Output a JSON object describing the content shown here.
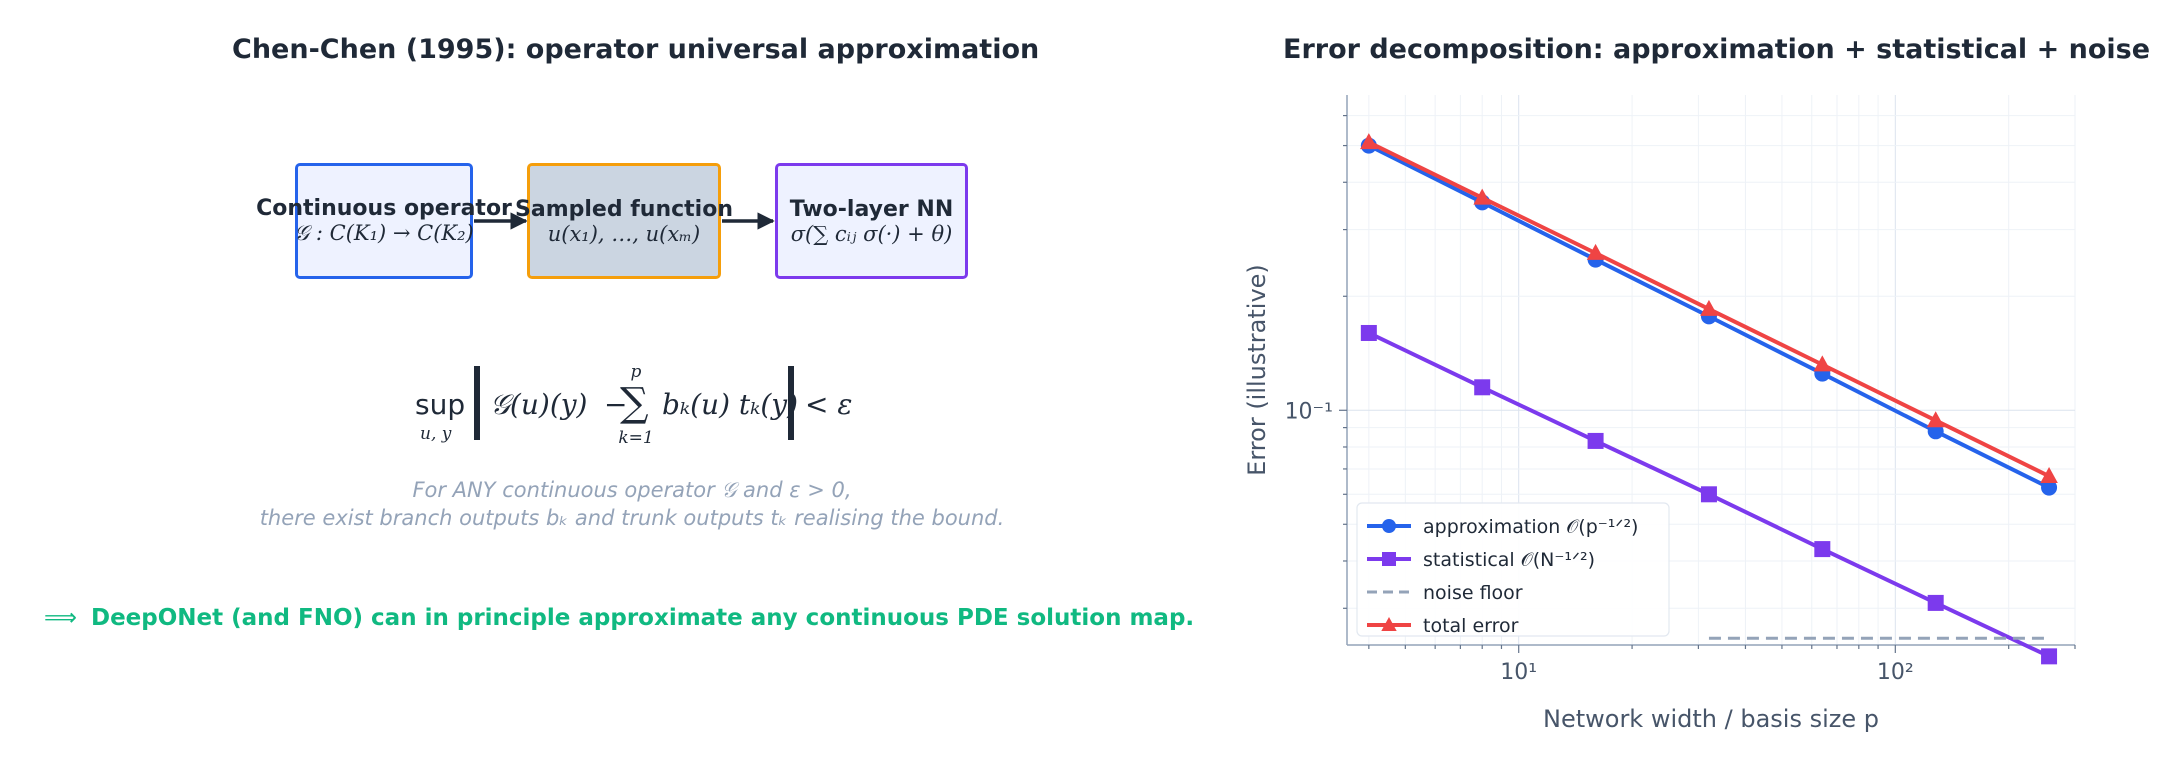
{
  "left": {
    "title": "Chen-Chen (1995): operator universal approximation",
    "boxes": [
      {
        "title": "Continuous operator",
        "math": "𝒢 : C(K₁) → C(K₂)"
      },
      {
        "title": "Sampled function",
        "math": "u(x₁), …, u(xₘ)"
      },
      {
        "title": "Two-layer NN",
        "math": "σ(∑ cᵢⱼ σ(·) + θ)"
      }
    ],
    "formula": {
      "sup": "sup",
      "sup_sub": "u, y",
      "lhs": "𝒢(u)(y)",
      "minus": "−",
      "sum_top": "p",
      "sum_bottom": "k=1",
      "rhs": "bₖ(u) tₖ(y)",
      "tail": "< ε"
    },
    "note_line1": "For ANY continuous operator 𝒢 and ε > 0,",
    "note_line2": "there exist branch outputs bₖ and trunk outputs tₖ realising the bound.",
    "conclusion_arrow": "⟹",
    "conclusion": "DeepONet (and FNO) can in principle approximate any continuous PDE solution map."
  },
  "chart_data": {
    "type": "line",
    "title": "Error decomposition: approximation + statistical + noise",
    "xlabel": "Network width / basis size  p",
    "ylabel": "Error (illustrative)",
    "xscale": "log",
    "yscale": "log",
    "xlim": [
      3.5,
      300
    ],
    "ylim": [
      0.024,
      0.68
    ],
    "xticks": [
      {
        "value": 10,
        "label": "10¹"
      },
      {
        "value": 100,
        "label": "10²"
      }
    ],
    "yticks": [
      {
        "value": 0.1,
        "label": "10⁻¹"
      }
    ],
    "grid": true,
    "legend": "lower-left",
    "x": [
      4,
      8,
      16,
      32,
      64,
      128,
      256
    ],
    "series": [
      {
        "name": "approximation  𝒪(p⁻¹ᐟ²)",
        "color": "#2563eb",
        "marker": "circle",
        "dashed": false,
        "values": [
          0.5,
          0.354,
          0.25,
          0.177,
          0.125,
          0.088,
          0.0625
        ]
      },
      {
        "name": "statistical  𝒪(N⁻¹ᐟ²)",
        "color": "#7c3aed",
        "marker": "square",
        "dashed": false,
        "values": [
          0.16,
          0.115,
          0.083,
          0.06,
          0.043,
          0.031,
          0.0224
        ]
      },
      {
        "name": "noise floor",
        "color": "#94a3b8",
        "marker": "none",
        "dashed": true,
        "values": [
          null,
          null,
          null,
          0.025,
          0.025,
          0.025,
          0.025
        ]
      },
      {
        "name": "total error",
        "color": "#ef4444",
        "marker": "triangle",
        "dashed": false,
        "values": [
          0.51,
          0.364,
          0.26,
          0.185,
          0.132,
          0.094,
          0.067
        ]
      }
    ]
  }
}
